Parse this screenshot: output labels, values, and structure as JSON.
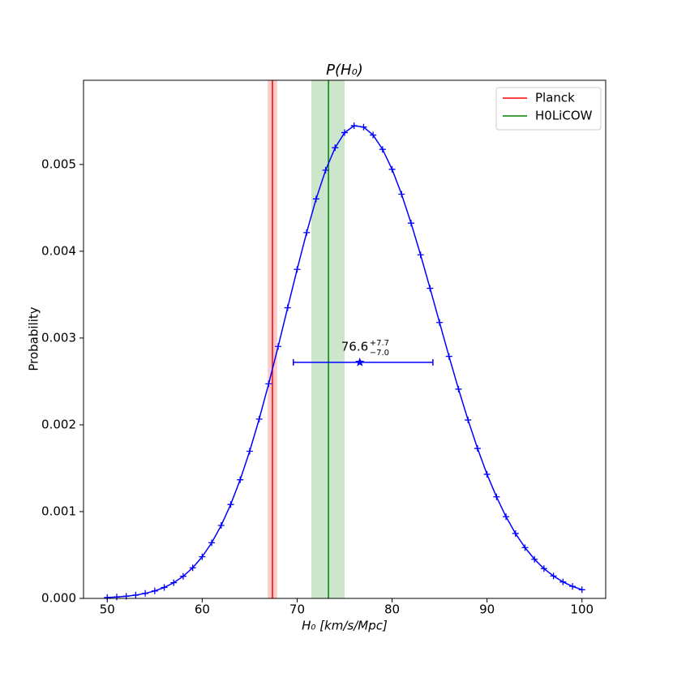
{
  "chart_data": {
    "type": "line",
    "title": "P(H₀)",
    "xlabel": "H₀ [km/s/Mpc]",
    "ylabel": "Probability",
    "x": [
      50,
      51,
      52,
      53,
      54,
      55,
      56,
      57,
      58,
      59,
      60,
      61,
      62,
      63,
      64,
      65,
      66,
      67,
      68,
      69,
      70,
      71,
      72,
      73,
      74,
      75,
      76,
      77,
      78,
      79,
      80,
      81,
      82,
      83,
      84,
      85,
      86,
      87,
      88,
      89,
      90,
      91,
      92,
      93,
      94,
      95,
      96,
      97,
      98,
      99,
      100
    ],
    "series": [
      {
        "color": "#0000ff",
        "marker": "+",
        "values": [
          1e-05,
          1.6e-05,
          2.5e-05,
          3.8e-05,
          5.8e-05,
          8.6e-05,
          0.000126,
          0.000181,
          0.000255,
          0.000353,
          0.00048,
          0.000641,
          0.000841,
          0.001082,
          0.001367,
          0.001696,
          0.002066,
          0.002472,
          0.002903,
          0.003349,
          0.003791,
          0.004215,
          0.004603,
          0.004934,
          0.005193,
          0.005367,
          0.005446,
          0.005431,
          0.005339,
          0.005174,
          0.004944,
          0.004657,
          0.004324,
          0.003959,
          0.003573,
          0.003179,
          0.002788,
          0.002411,
          0.002056,
          0.001728,
          0.00143,
          0.00117,
          0.000941,
          0.000748,
          0.000585,
          0.000451,
          0.000343,
          0.000258,
          0.00019,
          0.000139,
          0.0001
        ]
      }
    ],
    "vlines": [
      {
        "name": "Planck",
        "x": 67.4,
        "band": [
          66.9,
          67.9
        ],
        "color": "#ff0000"
      },
      {
        "name": "H0LiCOW",
        "x": 73.3,
        "band": [
          71.5,
          75.0
        ],
        "color": "#008000"
      }
    ],
    "estimate": {
      "x": 76.6,
      "y": 0.00272,
      "err_minus": 7.0,
      "err_plus": 7.7,
      "color": "#0000ff",
      "label": "76.6",
      "label_plus": "+7.7",
      "label_minus": "−7.0"
    },
    "xlim": [
      47.5,
      102.5
    ],
    "ylim": [
      0,
      0.00597
    ],
    "xticks": [
      50,
      60,
      70,
      80,
      90,
      100
    ],
    "yticks": [
      {
        "value": 0,
        "label": "0.000"
      },
      {
        "value": 0.001,
        "label": "0.001"
      },
      {
        "value": 0.002,
        "label": "0.002"
      },
      {
        "value": 0.003,
        "label": "0.003"
      },
      {
        "value": 0.004,
        "label": "0.004"
      },
      {
        "value": 0.005,
        "label": "0.005"
      }
    ],
    "legend": "upper right",
    "grid": false
  }
}
